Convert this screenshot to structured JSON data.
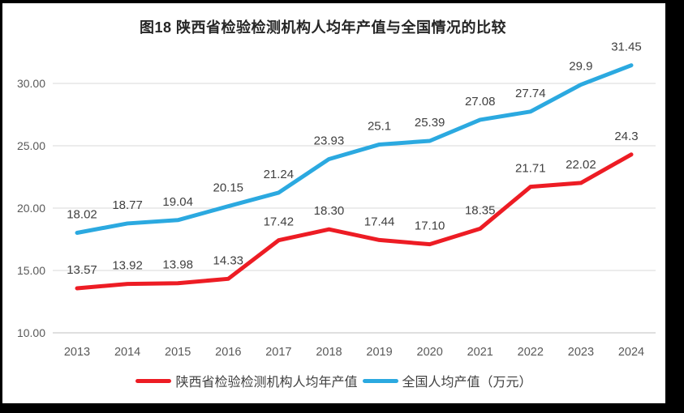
{
  "chart_data": {
    "type": "line",
    "title": "图18 陕西省检验检测机构人均年产值与全国情况的比较",
    "x": [
      2013,
      2014,
      2015,
      2016,
      2017,
      2018,
      2019,
      2020,
      2021,
      2022,
      2023,
      2024
    ],
    "series": [
      {
        "name": "陕西省检验检测机构人均年产值",
        "color": "#ED1C24",
        "values": [
          13.57,
          13.92,
          13.98,
          14.33,
          17.42,
          18.3,
          17.44,
          17.1,
          18.35,
          21.71,
          22.02,
          24.3
        ],
        "labels": [
          "13.57",
          "13.92",
          "13.98",
          "14.33",
          "17.42",
          "18.30",
          "17.44",
          "17.10",
          "18.35",
          "21.71",
          "22.02",
          "24.3"
        ]
      },
      {
        "name": "全国人均产值（万元）",
        "color": "#2BA9E0",
        "values": [
          18.02,
          18.77,
          19.04,
          20.15,
          21.24,
          23.93,
          25.1,
          25.39,
          27.08,
          27.74,
          29.9,
          31.45
        ],
        "labels": [
          "18.02",
          "18.77",
          "19.04",
          "20.15",
          "21.24",
          "23.93",
          "25.1",
          "25.39",
          "27.08",
          "27.74",
          "29.9",
          "31.45"
        ]
      }
    ],
    "y_ticks": [
      10,
      15,
      20,
      25,
      30
    ],
    "y_tick_labels": [
      "10.00",
      "15.00",
      "20.00",
      "25.00",
      "30.00"
    ],
    "ylim": [
      10,
      32.5
    ],
    "grid": true,
    "legend_position": "bottom"
  },
  "legend": {
    "items": [
      {
        "label": "陕西省检验检测机构人均年产值",
        "color": "#ED1C24"
      },
      {
        "label": "全国人均产值（万元）",
        "color": "#2BA9E0"
      }
    ]
  },
  "colors": {
    "gridline": "#D9D9D9",
    "axis_line": "#BFBFBF",
    "tick_text": "#595959",
    "data_label_text": "#404040",
    "title_text": "#262626",
    "frame": "#000000",
    "background": "#FFFFFF"
  }
}
